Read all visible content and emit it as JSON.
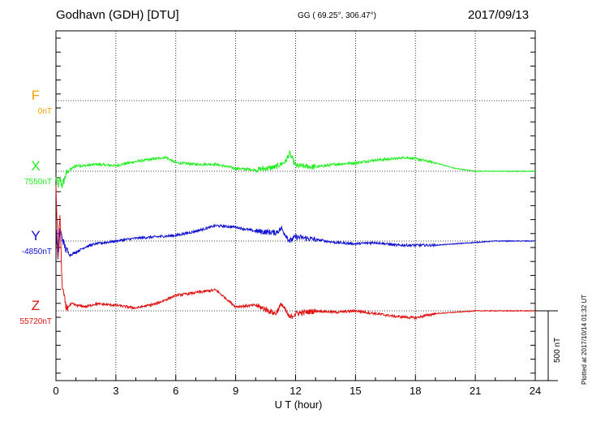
{
  "header": {
    "station": "Godhavn (GDH)  [DTU]",
    "coords": "GG ( 69.25°, 306.47°)",
    "date": "2017/09/13"
  },
  "footer": {
    "plotted": "Plotted at 2017/10/14 01:32 UT"
  },
  "colors": {
    "F": "#f5a000",
    "X": "#22ee22",
    "Y": "#1010d0",
    "Z": "#e01010"
  },
  "chart_data": {
    "type": "line",
    "title": "",
    "xlabel": "U T (hour)",
    "xlim": [
      0,
      24
    ],
    "xticks": [
      0,
      3,
      6,
      9,
      12,
      15,
      18,
      21,
      24
    ],
    "grid": true,
    "scale_bar": "500 nT",
    "series": [
      {
        "name": "F",
        "baseline": "0nT",
        "hours": [],
        "values": []
      },
      {
        "name": "X",
        "baseline": "7550nT",
        "hours": [
          0,
          0.1,
          0.2,
          0.3,
          0.4,
          0.5,
          0.7,
          1.0,
          1.5,
          2,
          3,
          4,
          5,
          5.5,
          6,
          7,
          8,
          9,
          10,
          11,
          11.5,
          11.7,
          12,
          13,
          14,
          15,
          16,
          17,
          17.5,
          18,
          19,
          20,
          21,
          22,
          23,
          24
        ],
        "values": [
          -50,
          -110,
          -60,
          -100,
          -70,
          -20,
          10,
          40,
          40,
          50,
          40,
          70,
          90,
          100,
          60,
          50,
          50,
          20,
          10,
          30,
          70,
          130,
          40,
          30,
          50,
          60,
          80,
          90,
          100,
          90,
          60,
          20,
          0,
          0,
          0,
          0
        ]
      },
      {
        "name": "Y",
        "baseline": "-4850nT",
        "hours": [
          0,
          0.1,
          0.2,
          0.3,
          0.4,
          0.5,
          0.7,
          1.0,
          1.5,
          2,
          3,
          4,
          5,
          6,
          7,
          8,
          9,
          10,
          11,
          11.3,
          11.7,
          12,
          13,
          14,
          15,
          16,
          17,
          18,
          19,
          20,
          21,
          22,
          23,
          24
        ],
        "values": [
          100,
          -150,
          80,
          30,
          -20,
          -60,
          -100,
          -80,
          -40,
          -20,
          0,
          20,
          30,
          40,
          70,
          110,
          100,
          70,
          60,
          90,
          0,
          30,
          10,
          -10,
          -20,
          -10,
          -30,
          -30,
          -30,
          -20,
          -10,
          0,
          0,
          0
        ]
      },
      {
        "name": "Z",
        "baseline": "55720nT",
        "hours": [
          0,
          0.1,
          0.2,
          0.3,
          0.5,
          0.8,
          1.0,
          1.5,
          2,
          3,
          4,
          5,
          6,
          7,
          8,
          9,
          10,
          10.5,
          11,
          11.3,
          11.7,
          12,
          13,
          14,
          15,
          16,
          17,
          18,
          19,
          20,
          21,
          22,
          23,
          24
        ],
        "values": [
          900,
          400,
          700,
          200,
          20,
          50,
          40,
          30,
          50,
          40,
          20,
          50,
          110,
          130,
          150,
          30,
          40,
          10,
          -20,
          50,
          -50,
          -20,
          0,
          -10,
          0,
          -20,
          -40,
          -50,
          -20,
          -10,
          0,
          0,
          0,
          0
        ]
      }
    ]
  }
}
